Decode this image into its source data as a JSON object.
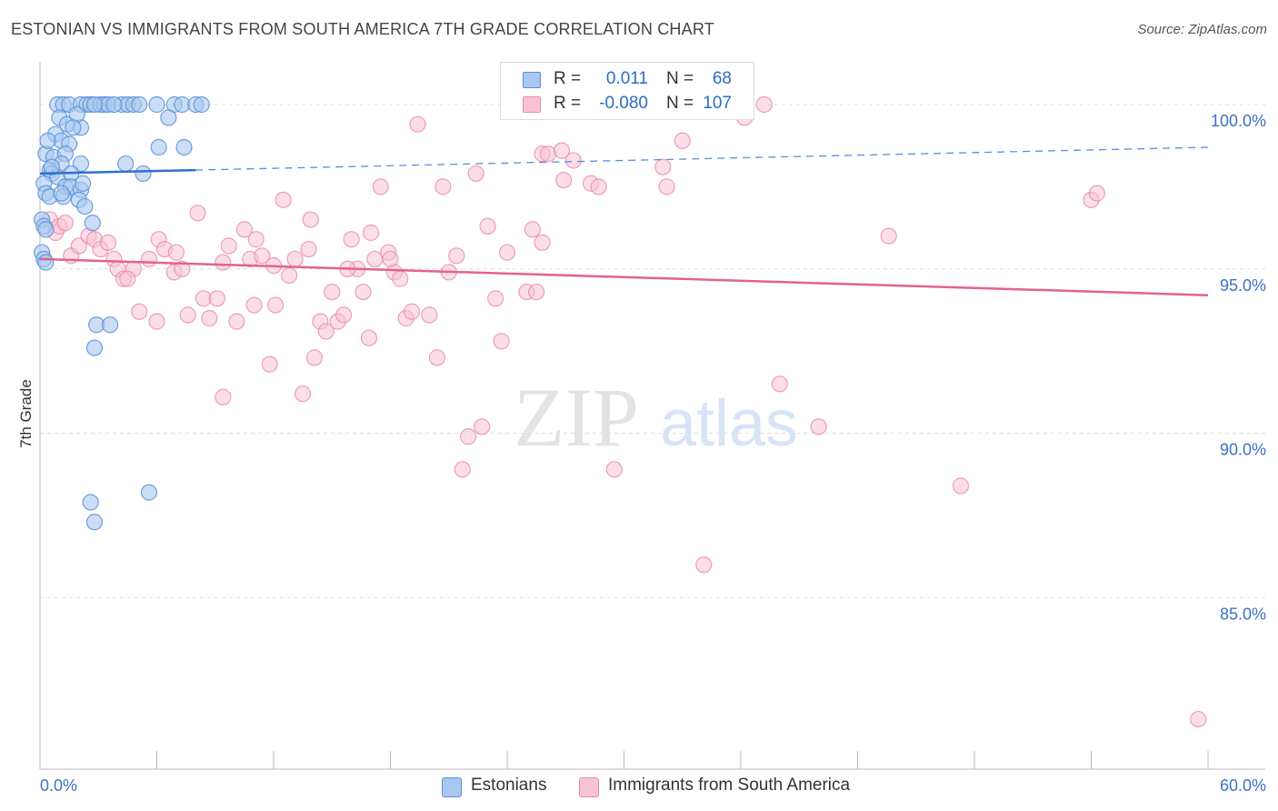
{
  "title": "ESTONIAN VS IMMIGRANTS FROM SOUTH AMERICA 7TH GRADE CORRELATION CHART",
  "source": "Source: ZipAtlas.com",
  "watermark": {
    "zip": "ZIP",
    "atlas": "atlas"
  },
  "legend_top": {
    "rows": [
      {
        "r_label": "R =",
        "r_value": "0.011",
        "n_label": "N =",
        "n_value": "68"
      },
      {
        "r_label": "R =",
        "r_value": "-0.080",
        "n_label": "N =",
        "n_value": "107"
      }
    ]
  },
  "legend_bottom": [
    "Estonians",
    "Immigrants from South America"
  ],
  "colors": {
    "blue_fill": "#a9c8f0",
    "blue_stroke": "#5b8fd6",
    "blue_line": "#2f6fd1",
    "pink_fill": "#f7c3d4",
    "pink_stroke": "#e98aa9",
    "pink_line": "#e4628e",
    "tick_label": "#3a72c4",
    "grid": "#dddddd"
  },
  "chart_data": {
    "type": "scatter",
    "title": "ESTONIAN VS IMMIGRANTS FROM SOUTH AMERICA 7TH GRADE CORRELATION CHART",
    "xlabel": "",
    "ylabel": "7th Grade",
    "xlim": [
      0,
      60
    ],
    "ylim": [
      80.5,
      101.3
    ],
    "x_tick_labels": [
      "0.0%",
      "60.0%"
    ],
    "y_ticks": [
      85,
      90,
      95,
      100
    ],
    "y_tick_labels": [
      "85.0%",
      "90.0%",
      "95.0%",
      "100.0%"
    ],
    "grid": "horizontal dashed",
    "legend_position": "top-center",
    "series": [
      {
        "name": "Estonians",
        "r": 0.011,
        "n": 68,
        "trend": {
          "x0": 0,
          "y0": 97.9,
          "x1": 60,
          "y1": 98.7,
          "solid_until": 8.0
        },
        "points": [
          [
            0.9,
            100
          ],
          [
            1.2,
            100
          ],
          [
            1.5,
            100
          ],
          [
            2.1,
            100
          ],
          [
            2.4,
            100
          ],
          [
            2.6,
            100
          ],
          [
            3.1,
            100
          ],
          [
            3.3,
            100
          ],
          [
            3.5,
            100
          ],
          [
            4.2,
            100
          ],
          [
            4.5,
            100
          ],
          [
            4.8,
            100
          ],
          [
            5.1,
            100
          ],
          [
            6.0,
            100
          ],
          [
            6.9,
            100
          ],
          [
            7.3,
            100
          ],
          [
            8.0,
            100
          ],
          [
            8.3,
            100
          ],
          [
            1.0,
            99.6
          ],
          [
            1.4,
            99.4
          ],
          [
            2.1,
            99.3
          ],
          [
            0.8,
            99.1
          ],
          [
            1.1,
            98.9
          ],
          [
            1.5,
            98.8
          ],
          [
            6.6,
            99.6
          ],
          [
            6.1,
            98.7
          ],
          [
            0.3,
            98.5
          ],
          [
            0.7,
            98.4
          ],
          [
            1.3,
            98.5
          ],
          [
            1.1,
            98.2
          ],
          [
            2.1,
            98.2
          ],
          [
            0.5,
            98.0
          ],
          [
            0.6,
            97.9
          ],
          [
            0.9,
            97.8
          ],
          [
            1.6,
            97.9
          ],
          [
            4.4,
            98.2
          ],
          [
            5.3,
            97.9
          ],
          [
            0.2,
            97.6
          ],
          [
            1.3,
            97.5
          ],
          [
            1.6,
            97.5
          ],
          [
            2.1,
            97.4
          ],
          [
            2.2,
            97.6
          ],
          [
            0.3,
            97.3
          ],
          [
            0.5,
            97.2
          ],
          [
            1.2,
            97.2
          ],
          [
            0.1,
            96.5
          ],
          [
            0.2,
            96.3
          ],
          [
            0.3,
            96.2
          ],
          [
            2.7,
            96.4
          ],
          [
            0.1,
            95.5
          ],
          [
            0.2,
            95.3
          ],
          [
            0.3,
            95.2
          ],
          [
            2.9,
            93.3
          ],
          [
            3.6,
            93.3
          ],
          [
            2.8,
            92.6
          ],
          [
            5.6,
            88.2
          ],
          [
            2.6,
            87.9
          ],
          [
            2.8,
            87.3
          ],
          [
            1.9,
            99.7
          ],
          [
            2.8,
            100
          ],
          [
            3.8,
            100
          ],
          [
            1.7,
            99.3
          ],
          [
            0.4,
            98.9
          ],
          [
            1.1,
            97.3
          ],
          [
            2.0,
            97.1
          ],
          [
            0.6,
            98.1
          ],
          [
            7.4,
            98.7
          ],
          [
            2.3,
            96.9
          ]
        ]
      },
      {
        "name": "Immigrants from South America",
        "r": -0.08,
        "n": 107,
        "trend": {
          "x0": 0,
          "y0": 95.3,
          "x1": 60,
          "y1": 94.2
        },
        "points": [
          [
            0.5,
            96.5
          ],
          [
            0.8,
            96.1
          ],
          [
            1.0,
            96.3
          ],
          [
            1.3,
            96.4
          ],
          [
            1.6,
            95.4
          ],
          [
            2.0,
            95.7
          ],
          [
            2.5,
            96.0
          ],
          [
            2.8,
            95.9
          ],
          [
            3.1,
            95.6
          ],
          [
            3.5,
            95.8
          ],
          [
            3.8,
            95.3
          ],
          [
            4.0,
            95.0
          ],
          [
            4.3,
            94.7
          ],
          [
            4.8,
            95.0
          ],
          [
            5.1,
            93.7
          ],
          [
            5.6,
            95.3
          ],
          [
            6.1,
            95.9
          ],
          [
            6.4,
            95.6
          ],
          [
            6.9,
            94.9
          ],
          [
            7.3,
            95.0
          ],
          [
            7.6,
            93.6
          ],
          [
            8.1,
            96.7
          ],
          [
            8.4,
            94.1
          ],
          [
            8.7,
            93.5
          ],
          [
            9.1,
            94.1
          ],
          [
            9.4,
            91.1
          ],
          [
            9.7,
            95.7
          ],
          [
            10.1,
            93.4
          ],
          [
            10.5,
            96.2
          ],
          [
            10.8,
            95.3
          ],
          [
            11.1,
            95.9
          ],
          [
            11.4,
            95.4
          ],
          [
            11.8,
            92.1
          ],
          [
            12.1,
            93.9
          ],
          [
            12.5,
            97.1
          ],
          [
            12.8,
            94.8
          ],
          [
            13.1,
            95.3
          ],
          [
            13.5,
            91.2
          ],
          [
            13.8,
            95.6
          ],
          [
            14.1,
            92.3
          ],
          [
            14.4,
            93.4
          ],
          [
            14.7,
            93.1
          ],
          [
            15.0,
            94.3
          ],
          [
            15.3,
            93.4
          ],
          [
            15.6,
            93.6
          ],
          [
            16.0,
            95.9
          ],
          [
            16.3,
            95.0
          ],
          [
            16.6,
            94.3
          ],
          [
            16.9,
            92.9
          ],
          [
            17.2,
            95.3
          ],
          [
            17.5,
            97.5
          ],
          [
            17.9,
            95.5
          ],
          [
            18.2,
            94.9
          ],
          [
            18.5,
            94.7
          ],
          [
            18.8,
            93.5
          ],
          [
            19.1,
            93.7
          ],
          [
            19.4,
            99.4
          ],
          [
            20.0,
            93.6
          ],
          [
            20.4,
            92.3
          ],
          [
            20.7,
            97.5
          ],
          [
            21.0,
            94.9
          ],
          [
            21.4,
            95.4
          ],
          [
            21.7,
            88.9
          ],
          [
            22.0,
            89.9
          ],
          [
            22.4,
            97.9
          ],
          [
            22.7,
            90.2
          ],
          [
            23.0,
            96.3
          ],
          [
            23.4,
            94.1
          ],
          [
            23.7,
            92.8
          ],
          [
            24.0,
            95.5
          ],
          [
            24.5,
            100
          ],
          [
            25.0,
            94.3
          ],
          [
            25.3,
            96.2
          ],
          [
            25.5,
            94.3
          ],
          [
            25.8,
            98.5
          ],
          [
            26.1,
            98.5
          ],
          [
            26.8,
            98.6
          ],
          [
            26.9,
            97.7
          ],
          [
            27.4,
            98.3
          ],
          [
            28.0,
            100
          ],
          [
            28.3,
            97.6
          ],
          [
            28.7,
            97.5
          ],
          [
            29.5,
            88.9
          ],
          [
            32.0,
            98.1
          ],
          [
            32.2,
            97.5
          ],
          [
            33.0,
            98.9
          ],
          [
            34.1,
            86.0
          ],
          [
            36.2,
            99.6
          ],
          [
            37.2,
            100
          ],
          [
            38.0,
            91.5
          ],
          [
            40.0,
            90.2
          ],
          [
            43.6,
            96.0
          ],
          [
            47.3,
            88.4
          ],
          [
            54.0,
            97.1
          ],
          [
            54.3,
            97.3
          ],
          [
            59.5,
            81.3
          ],
          [
            4.5,
            94.7
          ],
          [
            6.0,
            93.4
          ],
          [
            11.0,
            93.9
          ],
          [
            17.0,
            96.1
          ],
          [
            18.0,
            95.3
          ],
          [
            25.8,
            95.8
          ],
          [
            12.0,
            95.1
          ],
          [
            15.8,
            95.0
          ],
          [
            9.4,
            95.2
          ],
          [
            7.0,
            95.5
          ],
          [
            13.9,
            96.5
          ]
        ]
      }
    ]
  }
}
